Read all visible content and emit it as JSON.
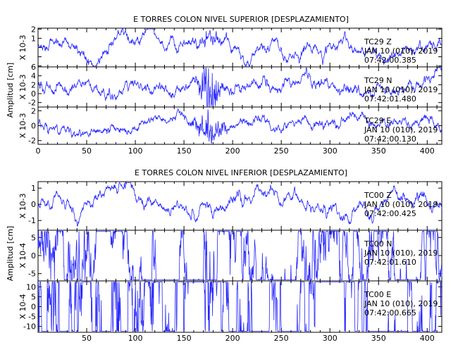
{
  "chart_data": [
    {
      "type": "line",
      "title": "E TORRES COLON NIVEL SUPERIOR [DESPLAZAMIENTO]",
      "ylabel": "Amplitud [cm]",
      "xlim": [
        0,
        415
      ],
      "xticks": [
        "0",
        "50",
        "100",
        "150",
        "200",
        "250",
        "300",
        "350",
        "400"
      ],
      "line_color": "#2626ff",
      "panels": [
        {
          "scale": "X 10-3",
          "ylim": [
            -2.1,
            2.1
          ],
          "yticks": [
            -2,
            -1,
            0,
            1,
            2
          ],
          "ytick_labels": [
            "",
            "",
            "",
            "1",
            "2"
          ],
          "station": "TC29",
          "component": "Z",
          "date": "JAN 10 (010), 2019",
          "time": "07:42:00.385"
        },
        {
          "scale": "X 10-3",
          "ylim": [
            -3,
            6
          ],
          "yticks": [
            -2,
            0,
            2,
            4,
            6
          ],
          "ytick_labels": [
            "-2",
            "0",
            "2",
            "4",
            "6"
          ],
          "station": "TC29",
          "component": "N",
          "date": "JAN 10 (010), 2019",
          "time": "07:42:01.480"
        },
        {
          "scale": "X 10-3",
          "ylim": [
            -2.5,
            2.5
          ],
          "yticks": [
            -2,
            0,
            2
          ],
          "ytick_labels": [
            "-2",
            "0",
            "2"
          ],
          "station": "TC29",
          "component": "E",
          "date": "JAN 10 (010), 2019",
          "time": "07:42:00.130"
        }
      ]
    },
    {
      "type": "line",
      "title": "E TORRES COLON NIVEL INFERIOR [DESPLAZAMIENTO]",
      "ylabel": "Amplitud [cm]",
      "xlim": [
        0,
        415
      ],
      "xticks": [
        "50",
        "100",
        "150",
        "200",
        "250",
        "300",
        "350",
        "400"
      ],
      "line_color": "#2626ff",
      "panels": [
        {
          "scale": "X 10-3",
          "ylim": [
            -1.6,
            1.4
          ],
          "yticks": [
            -1,
            0,
            1
          ],
          "ytick_labels": [
            "-1",
            "0",
            "1"
          ],
          "station": "TC00",
          "component": "Z",
          "date": "JAN 10 (010), 2019",
          "time": "07:42:00.425"
        },
        {
          "scale": "X 10-4",
          "ylim": [
            -7,
            7
          ],
          "yticks": [
            -5,
            0,
            5
          ],
          "ytick_labels": [
            "-5",
            "0",
            "5"
          ],
          "station": "TC00",
          "component": "N",
          "date": "JAN 10 (010), 2019",
          "time": "07:42:01.610"
        },
        {
          "scale": "X 10-4",
          "ylim": [
            -13,
            13
          ],
          "yticks": [
            -10,
            -5,
            0,
            5,
            10
          ],
          "ytick_labels": [
            "-10",
            "-5",
            "0",
            "5",
            "10"
          ],
          "station": "TC00",
          "component": "E",
          "date": "JAN 10 (010), 2019",
          "time": "07:42:00.665"
        }
      ]
    }
  ]
}
